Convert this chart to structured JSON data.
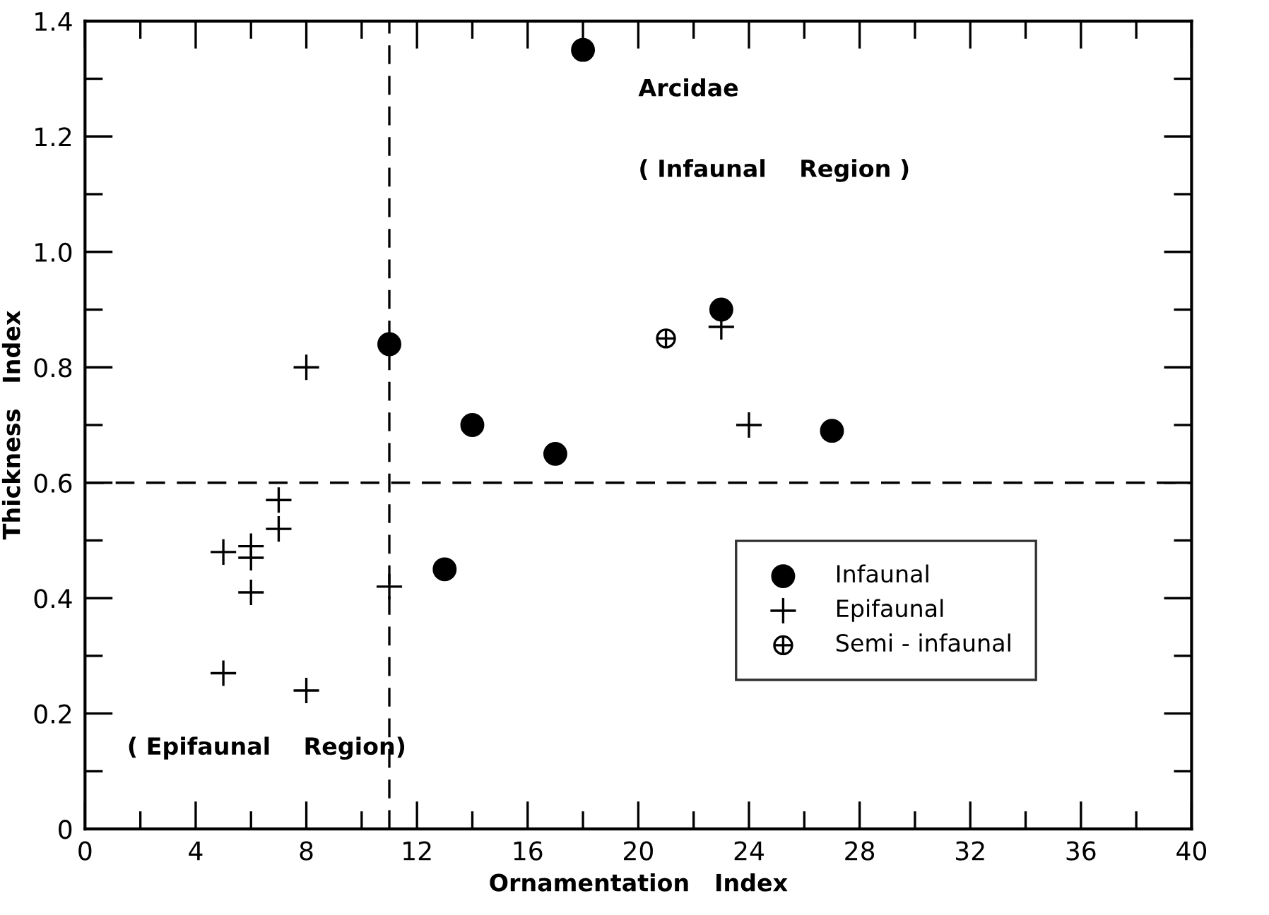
{
  "chart_data": {
    "type": "scatter",
    "xlabel": "Ornamentation   Index",
    "ylabel": "Thickness   Index",
    "xlim": [
      0,
      40
    ],
    "ylim": [
      0,
      1.4
    ],
    "xticks": [
      0,
      {
        "value": 2,
        "label": null
      },
      4,
      {
        "value": 6,
        "label": null
      },
      8,
      {
        "value": 10,
        "label": null
      },
      12,
      {
        "value": 14,
        "label": null
      },
      16,
      {
        "value": 18,
        "label": null
      },
      20,
      {
        "value": 22,
        "label": null
      },
      24,
      {
        "value": 26,
        "label": null
      },
      28,
      {
        "value": 30,
        "label": null
      },
      32,
      {
        "value": 34,
        "label": null
      },
      36,
      {
        "value": 38,
        "label": null
      },
      40
    ],
    "yticks": [
      0,
      {
        "value": 0.1,
        "label": null
      },
      0.2,
      {
        "value": 0.3,
        "label": null
      },
      0.4,
      {
        "value": 0.5,
        "label": null
      },
      0.6,
      {
        "value": 0.7,
        "label": null
      },
      0.8,
      {
        "value": 0.9,
        "label": null
      },
      {
        "value": 1.0,
        "label": "1.0"
      },
      {
        "value": 1.1,
        "label": null
      },
      1.2,
      {
        "value": 1.3,
        "label": null
      },
      1.4
    ],
    "grid": false,
    "legend": "bottom right",
    "series": [
      {
        "name": "Infaunal",
        "color": "#000000",
        "marker": "circle",
        "x": [
          11,
          13,
          14,
          17,
          18,
          23,
          27
        ],
        "values": [
          0.84,
          0.45,
          0.7,
          0.65,
          1.35,
          0.9,
          0.69
        ]
      },
      {
        "name": "Epifaunal",
        "color": "#000000",
        "marker": "cross",
        "x": [
          5,
          5,
          6,
          6,
          6,
          7,
          7,
          8,
          8,
          11,
          23,
          24
        ],
        "values": [
          0.48,
          0.27,
          0.49,
          0.47,
          0.41,
          0.57,
          0.52,
          0.8,
          0.24,
          0.42,
          0.87,
          0.7
        ]
      },
      {
        "name": "Semi - infaunal",
        "color": "#000000",
        "x": [
          21
        ],
        "values": [
          0.85
        ]
      }
    ],
    "ref_lines": [
      {
        "axis": "x",
        "value": 11,
        "line_style": "dashed",
        "color": "#000000"
      },
      {
        "axis": "y",
        "value": 0.6,
        "line_style": "dashed",
        "color": "#000000"
      }
    ],
    "annotations": [
      "Arcidae",
      "( Infaunal    Region )",
      "( Epifaunal    Region)"
    ]
  }
}
